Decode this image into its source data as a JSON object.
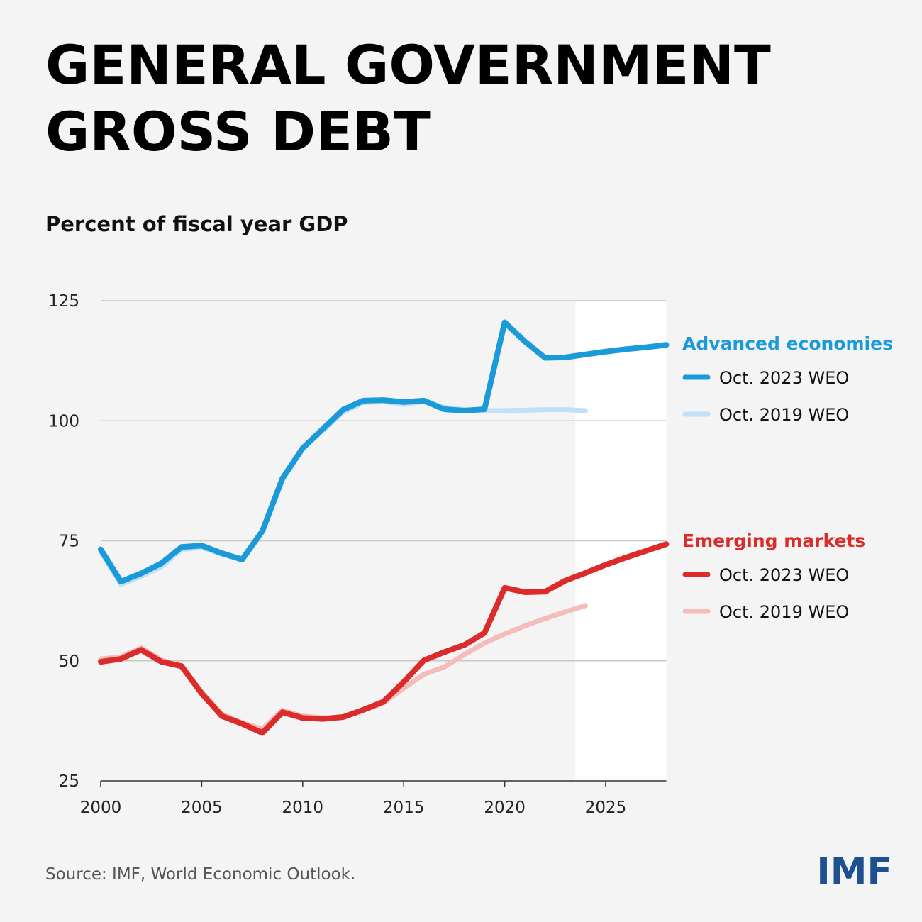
{
  "chart_data": {
    "type": "line",
    "title": [
      "GENERAL GOVERNMENT",
      "GROSS DEBT"
    ],
    "subtitle": "Percent of fiscal year GDP",
    "x": [
      2000,
      2001,
      2002,
      2003,
      2004,
      2005,
      2006,
      2007,
      2008,
      2009,
      2010,
      2011,
      2012,
      2013,
      2014,
      2015,
      2016,
      2017,
      2018,
      2019,
      2020,
      2021,
      2022,
      2023,
      2024,
      2025,
      2026,
      2027,
      2028
    ],
    "xlim": [
      2000,
      2028
    ],
    "xticks": [
      2000,
      2005,
      2010,
      2015,
      2020,
      2025
    ],
    "ylim": [
      25,
      125
    ],
    "yticks": [
      25,
      50,
      75,
      100,
      125
    ],
    "grid": true,
    "shaded_xrange": [
      2023.5,
      2028
    ],
    "groups": [
      {
        "name": "Advanced economies",
        "color": "#1a9ad9",
        "series": [
          {
            "name": "Oct. 2023 WEO",
            "color": "#1a9ad9",
            "values": [
              73.2,
              66.5,
              68.2,
              70.3,
              73.7,
              74.0,
              72.4,
              71.1,
              77.0,
              88.0,
              94.3,
              98.3,
              102.3,
              104.2,
              104.3,
              103.9,
              104.2,
              102.4,
              102.1,
              102.4,
              120.5,
              116.5,
              113.1,
              113.2,
              113.8,
              114.4,
              114.9,
              115.3,
              115.8
            ]
          },
          {
            "name": "Oct. 2019 WEO",
            "color": "#bfe0f6",
            "values": [
              72.8,
              65.9,
              67.6,
              69.6,
              73.2,
              73.6,
              72.2,
              71.3,
              77.1,
              88.0,
              94.2,
              98.0,
              101.8,
              103.8,
              104.0,
              103.4,
              104.0,
              102.8,
              102.3,
              102.1,
              102.1,
              102.2,
              102.3,
              102.3,
              102.1,
              null,
              null,
              null,
              null
            ]
          }
        ]
      },
      {
        "name": "Emerging markets",
        "color": "#db2b2b",
        "series": [
          {
            "name": "Oct. 2023 WEO",
            "color": "#db2b2b",
            "values": [
              49.8,
              50.4,
              52.3,
              49.8,
              48.9,
              43.2,
              38.5,
              36.9,
              35.0,
              39.3,
              38.1,
              37.9,
              38.3,
              39.8,
              41.5,
              45.6,
              50.1,
              51.8,
              53.3,
              55.8,
              65.2,
              64.3,
              64.4,
              66.7,
              68.3,
              70.0,
              71.5,
              72.9,
              74.3
            ]
          },
          {
            "name": "Oct. 2019 WEO",
            "color": "#f4bcba",
            "values": [
              50.4,
              50.8,
              52.7,
              50.2,
              48.7,
              43.5,
              38.9,
              37.1,
              35.8,
              39.7,
              38.5,
              38.1,
              38.2,
              39.7,
              41.2,
              44.3,
              47.2,
              48.7,
              51.3,
              53.7,
              55.6,
              57.3,
              58.8,
              60.2,
              61.5,
              null,
              null,
              null,
              null
            ]
          }
        ]
      }
    ],
    "source": "Source: IMF, World Economic Outlook.",
    "logo": "IMF"
  }
}
